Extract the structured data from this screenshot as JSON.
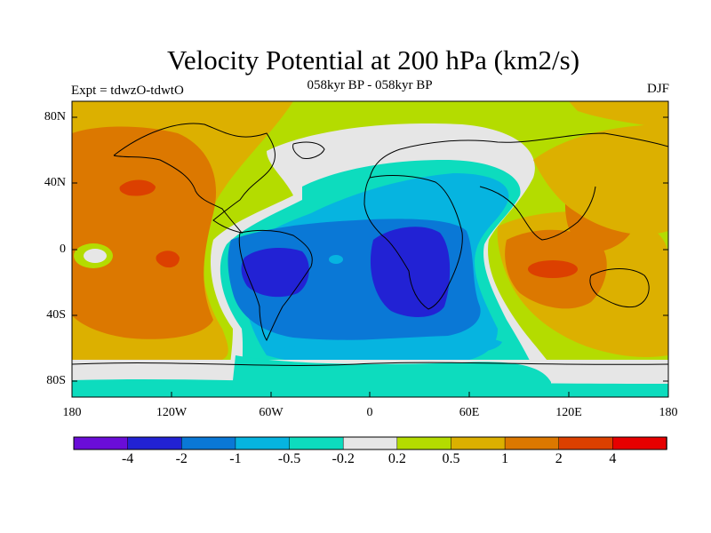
{
  "title": "Velocity Potential at 200 hPa (km2/s)",
  "subtitle": "058kyr BP - 058kyr BP",
  "left_label": "Expt = tdwzO-tdwtO",
  "right_label": "DJF",
  "y_ticks": [
    "80N",
    "40N",
    "0",
    "40S",
    "80S"
  ],
  "x_ticks": [
    "180",
    "120W",
    "60W",
    "0",
    "60E",
    "120E",
    "180"
  ],
  "colorbar": {
    "colors": [
      "#6a0dd8",
      "#2222d4",
      "#0a78d6",
      "#06b4e0",
      "#0ddcbe",
      "#e6e6e6",
      "#b4dc00",
      "#dcb000",
      "#dc7800",
      "#dc4000",
      "#e60000"
    ],
    "labels": [
      "-4",
      "-2",
      "-1",
      "-0.5",
      "-0.2",
      "0.2",
      "0.5",
      "1",
      "2",
      "4"
    ]
  }
}
